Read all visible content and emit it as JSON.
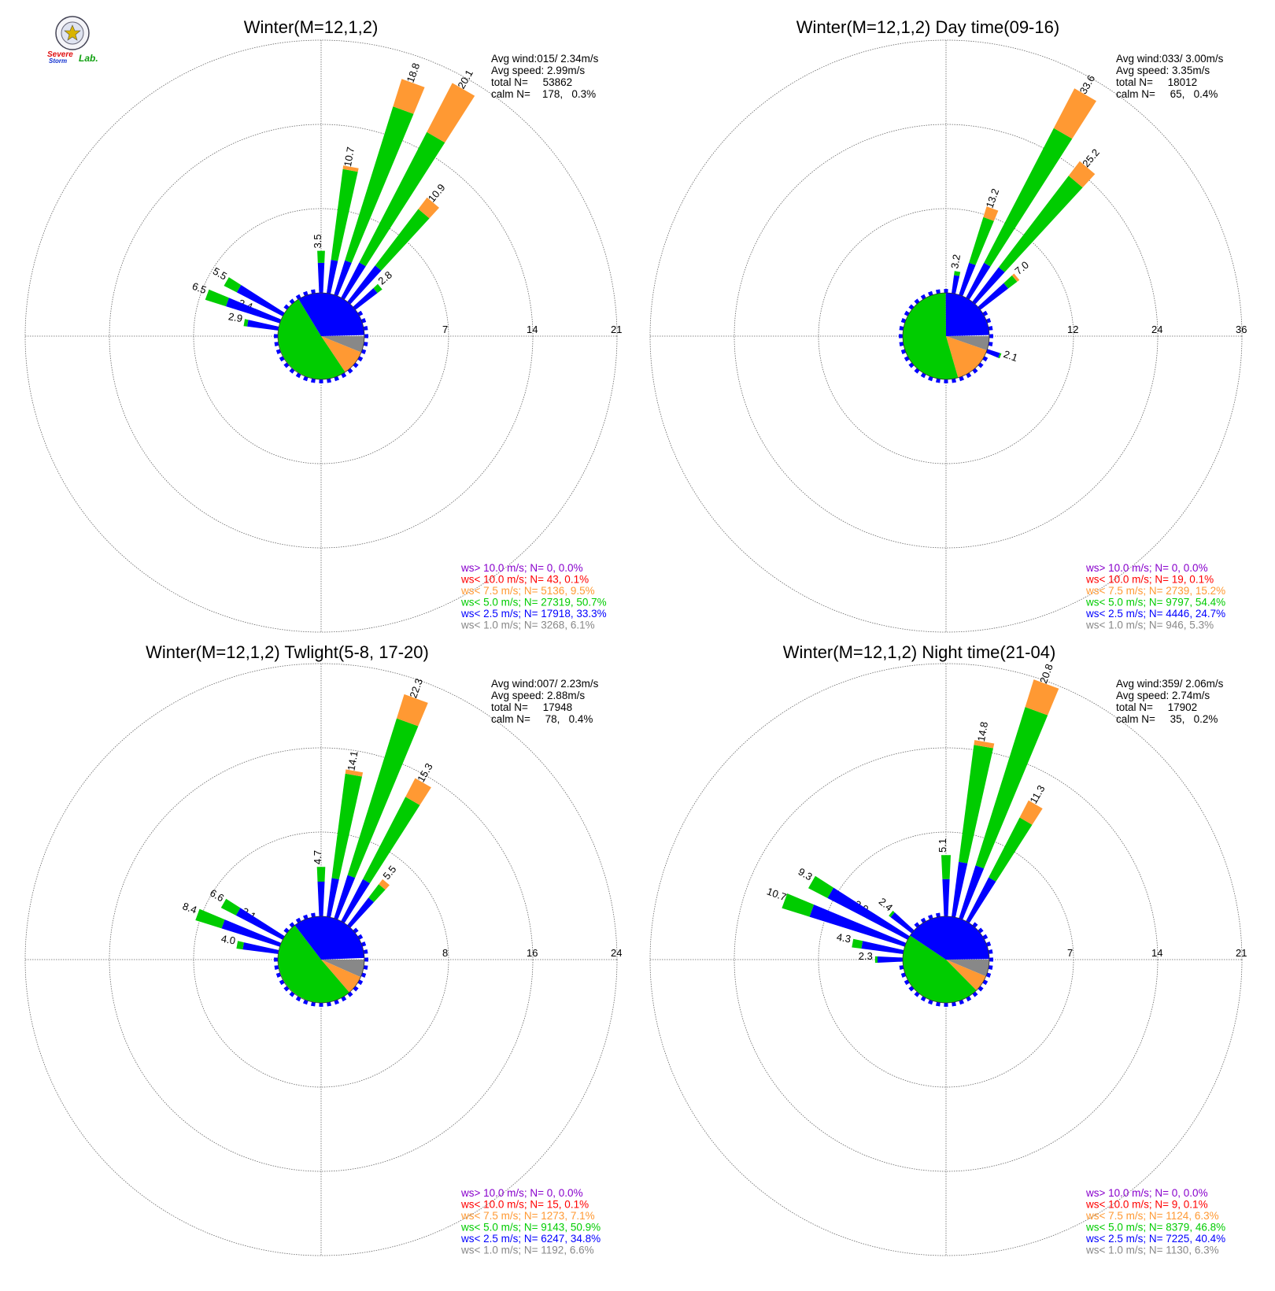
{
  "logo": {
    "text_a": "Severe",
    "text_b": "Storm",
    "text_c": "Lab."
  },
  "colors": {
    "gt10": "#8800cc",
    "lt10": "#ff0000",
    "lt7_5": "#ff9933",
    "lt5": "#00cc00",
    "lt2_5": "#0000ff",
    "lt1": "#888888",
    "grid": "#666666"
  },
  "chart_data": [
    {
      "type": "wind-rose",
      "title": "Winter(M=12,1,2)",
      "stats": {
        "avg_wind": "Avg wind:015/ 2.34m/s",
        "avg_speed": "Avg speed: 2.99m/s",
        "total": "total N=     53862",
        "calm": "calm N=    178,   0.3%"
      },
      "rings": [
        7,
        14,
        21
      ],
      "ring_labels": [
        "7",
        "14",
        "21"
      ],
      "max": 21,
      "legend": [
        {
          "text": "ws> 10.0 m/s; N=     0,  0.0%",
          "color": "#8800cc"
        },
        {
          "text": "ws< 10.0 m/s; N=    43,  0.1%",
          "color": "#ff0000"
        },
        {
          "text": "ws<  7.5 m/s; N=  5136,  9.5%",
          "color": "#ff9933"
        },
        {
          "text": "ws<  5.0 m/s; N= 27319, 50.7%",
          "color": "#00cc00"
        },
        {
          "text": "ws<  2.5 m/s; N= 17918, 33.3%",
          "color": "#0000ff"
        },
        {
          "text": "ws<  1.0 m/s; N=  3268,  6.1%",
          "color": "#888888"
        }
      ],
      "sectors": [
        {
          "dir": 0,
          "total": 3.5,
          "green": 1.0,
          "orange": 0.0,
          "label": "3.5"
        },
        {
          "dir": 10,
          "total": 10.7,
          "green": 7.6,
          "orange": 0.3,
          "label": "10.7"
        },
        {
          "dir": 20,
          "total": 18.8,
          "green": 13.4,
          "orange": 2.4,
          "label": "18.8"
        },
        {
          "dir": 30,
          "total": 20.1,
          "green": 12.2,
          "orange": 4.6,
          "label": "20.1"
        },
        {
          "dir": 40,
          "total": 10.9,
          "green": 5.9,
          "orange": 1.2,
          "label": "10.9"
        },
        {
          "dir": 50,
          "total": 2.8,
          "green": 0.5,
          "orange": 0.0,
          "label": "2.8"
        },
        {
          "dir": 290,
          "total": 2.4,
          "green": 0.2,
          "orange": 0.0,
          "label": "2.4"
        },
        {
          "dir": 300,
          "total": 5.5,
          "green": 1.2,
          "orange": 0.0,
          "label": "5.5"
        },
        {
          "dir": 290,
          "total": 6.5,
          "green": 1.8,
          "orange": 0.0,
          "label": "6.5"
        },
        {
          "dir": 280,
          "total": 2.9,
          "green": 0.3,
          "orange": 0.0,
          "label": "2.9"
        }
      ],
      "pie": [
        {
          "frac": 0.061,
          "color": "#888888"
        },
        {
          "frac": 0.095,
          "color": "#ff9933"
        },
        {
          "frac": 0.507,
          "color": "#00cc00"
        },
        {
          "frac": 0.333,
          "color": "#0000ff"
        }
      ]
    },
    {
      "type": "wind-rose",
      "title": "Winter(M=12,1,2) Day time(09-16)",
      "stats": {
        "avg_wind": "Avg wind:033/ 3.00m/s",
        "avg_speed": "Avg speed: 3.35m/s",
        "total": "total N=     18012",
        "calm": "calm N=     65,   0.4%"
      },
      "rings": [
        12,
        24,
        36
      ],
      "ring_labels": [
        "12",
        "24",
        "36"
      ],
      "max": 36,
      "legend": [
        {
          "text": "ws> 10.0 m/s; N=     0,  0.0%",
          "color": "#8800cc"
        },
        {
          "text": "ws< 10.0 m/s; N=    19,  0.1%",
          "color": "#ff0000"
        },
        {
          "text": "ws<  7.5 m/s; N=  2739, 15.2%",
          "color": "#ff9933"
        },
        {
          "text": "ws<  5.0 m/s; N=  9797, 54.4%",
          "color": "#00cc00"
        },
        {
          "text": "ws<  2.5 m/s; N=  4446, 24.7%",
          "color": "#0000ff"
        },
        {
          "text": "ws<  1.0 m/s; N=   946,  5.3%",
          "color": "#888888"
        }
      ],
      "sectors": [
        {
          "dir": 10,
          "total": 3.2,
          "green": 0.6,
          "orange": 0.0,
          "label": "3.2"
        },
        {
          "dir": 20,
          "total": 13.2,
          "green": 6.8,
          "orange": 1.6,
          "label": "13.2"
        },
        {
          "dir": 30,
          "total": 33.6,
          "green": 21.6,
          "orange": 6.4,
          "label": "33.6"
        },
        {
          "dir": 40,
          "total": 25.2,
          "green": 16.4,
          "orange": 2.6,
          "label": "25.2"
        },
        {
          "dir": 50,
          "total": 7.0,
          "green": 1.6,
          "orange": 0.4,
          "label": "7.0"
        },
        {
          "dir": 110,
          "total": 2.1,
          "green": 0.2,
          "orange": 0.0,
          "label": "2.1"
        }
      ],
      "pie": [
        {
          "frac": 0.053,
          "color": "#888888"
        },
        {
          "frac": 0.152,
          "color": "#ff9933"
        },
        {
          "frac": 0.544,
          "color": "#00cc00"
        },
        {
          "frac": 0.247,
          "color": "#0000ff"
        }
      ]
    },
    {
      "type": "wind-rose",
      "title": "Winter(M=12,1,2) Twlight(5-8, 17-20)",
      "stats": {
        "avg_wind": "Avg wind:007/ 2.23m/s",
        "avg_speed": "Avg speed: 2.88m/s",
        "total": "total N=     17948",
        "calm": "calm N=     78,   0.4%"
      },
      "rings": [
        8,
        16,
        24
      ],
      "ring_labels": [
        "8",
        "16",
        "24"
      ],
      "max": 24,
      "legend": [
        {
          "text": "ws> 10.0 m/s; N=     0,  0.0%",
          "color": "#8800cc"
        },
        {
          "text": "ws< 10.0 m/s; N=    15,  0.1%",
          "color": "#ff0000"
        },
        {
          "text": "ws<  7.5 m/s; N=  1273,  7.1%",
          "color": "#ff9933"
        },
        {
          "text": "ws<  5.0 m/s; N=  9143, 50.9%",
          "color": "#00cc00"
        },
        {
          "text": "ws<  2.5 m/s; N=  6247, 34.8%",
          "color": "#0000ff"
        },
        {
          "text": "ws<  1.0 m/s; N=  1192,  6.6%",
          "color": "#888888"
        }
      ],
      "sectors": [
        {
          "dir": 0,
          "total": 4.7,
          "green": 1.4,
          "orange": 0.0,
          "label": "4.7"
        },
        {
          "dir": 10,
          "total": 14.1,
          "green": 10.0,
          "orange": 0.4,
          "label": "14.1"
        },
        {
          "dir": 20,
          "total": 22.3,
          "green": 15.6,
          "orange": 2.4,
          "label": "22.3"
        },
        {
          "dir": 30,
          "total": 15.3,
          "green": 8.8,
          "orange": 2.0,
          "label": "15.3"
        },
        {
          "dir": 40,
          "total": 5.5,
          "green": 1.6,
          "orange": 0.6,
          "label": "5.5"
        },
        {
          "dir": 300,
          "total": 3.1,
          "green": 0.3,
          "orange": 0.0,
          "label": "3.1"
        },
        {
          "dir": 300,
          "total": 6.6,
          "green": 1.6,
          "orange": 0.0,
          "label": "6.6"
        },
        {
          "dir": 290,
          "total": 8.4,
          "green": 2.6,
          "orange": 0.0,
          "label": "8.4"
        },
        {
          "dir": 280,
          "total": 4.0,
          "green": 0.6,
          "orange": 0.0,
          "label": "4.0"
        }
      ],
      "pie": [
        {
          "frac": 0.066,
          "color": "#888888"
        },
        {
          "frac": 0.071,
          "color": "#ff9933"
        },
        {
          "frac": 0.509,
          "color": "#00cc00"
        },
        {
          "frac": 0.348,
          "color": "#0000ff"
        }
      ]
    },
    {
      "type": "wind-rose",
      "title": "Winter(M=12,1,2) Night time(21-04)",
      "stats": {
        "avg_wind": "Avg wind:359/ 2.06m/s",
        "avg_speed": "Avg speed: 2.74m/s",
        "total": "total N=     17902",
        "calm": "calm N=     35,   0.2%"
      },
      "rings": [
        7,
        14,
        21
      ],
      "ring_labels": [
        "7",
        "14",
        "21"
      ],
      "max": 21,
      "legend": [
        {
          "text": "ws> 10.0 m/s; N=     0,  0.0%",
          "color": "#8800cc"
        },
        {
          "text": "ws< 10.0 m/s; N=     9,  0.1%",
          "color": "#ff0000"
        },
        {
          "text": "ws<  7.5 m/s; N=  1124,  6.3%",
          "color": "#ff9933"
        },
        {
          "text": "ws<  5.0 m/s; N=  8379, 46.8%",
          "color": "#00cc00"
        },
        {
          "text": "ws<  2.5 m/s; N=  7225, 40.4%",
          "color": "#0000ff"
        },
        {
          "text": "ws<  1.0 m/s; N=  1130,  6.3%",
          "color": "#888888"
        }
      ],
      "sectors": [
        {
          "dir": 0,
          "total": 5.1,
          "green": 2.0,
          "orange": 0.0,
          "label": "5.1"
        },
        {
          "dir": 10,
          "total": 14.8,
          "green": 9.8,
          "orange": 0.4,
          "label": "14.8"
        },
        {
          "dir": 20,
          "total": 20.8,
          "green": 13.8,
          "orange": 2.4,
          "label": "20.8"
        },
        {
          "dir": 30,
          "total": 11.3,
          "green": 5.6,
          "orange": 1.6,
          "label": "11.3"
        },
        {
          "dir": 310,
          "total": 2.4,
          "green": 0.2,
          "orange": 0.0,
          "label": "2.4"
        },
        {
          "dir": 300,
          "total": 3.9,
          "green": 0.4,
          "orange": 0.0,
          "label": "3.9"
        },
        {
          "dir": 300,
          "total": 9.3,
          "green": 1.8,
          "orange": 0.0,
          "label": "9.3"
        },
        {
          "dir": 290,
          "total": 10.7,
          "green": 2.4,
          "orange": 0.0,
          "label": "10.7"
        },
        {
          "dir": 280,
          "total": 4.3,
          "green": 0.8,
          "orange": 0.0,
          "label": "4.3"
        },
        {
          "dir": 270,
          "total": 2.3,
          "green": 0.2,
          "orange": 0.0,
          "label": "2.3"
        }
      ],
      "pie": [
        {
          "frac": 0.063,
          "color": "#888888"
        },
        {
          "frac": 0.063,
          "color": "#ff9933"
        },
        {
          "frac": 0.468,
          "color": "#00cc00"
        },
        {
          "frac": 0.404,
          "color": "#0000ff"
        }
      ]
    }
  ]
}
